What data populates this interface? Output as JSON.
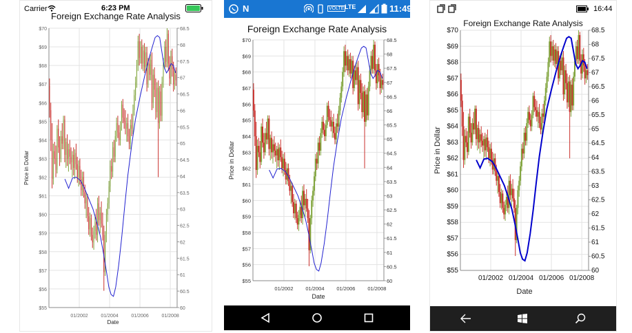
{
  "ios": {
    "status": {
      "carrier": "Carrier",
      "time": "6:23 PM"
    }
  },
  "android": {
    "status": {
      "time": "11:49",
      "volte": "VOLTE",
      "lte": "LTE"
    }
  },
  "windows": {
    "status": {
      "time": "16:44"
    }
  },
  "chart_data": [
    {
      "type": "candlestick",
      "platform": "iOS",
      "title": "Foreign Exchange Rate Analysis",
      "xlabel": "Date",
      "ylabel": "Price in Dollar",
      "x_ticks": [
        "01/2002",
        "01/2004",
        "01/2006",
        "01/2008"
      ],
      "y_left": {
        "range": [
          55,
          70
        ],
        "ticks": [
          "$55",
          "$56",
          "$57",
          "$58",
          "$59",
          "$60",
          "$61",
          "$62",
          "$63",
          "$64",
          "$65",
          "$66",
          "$67",
          "$68",
          "$69",
          "$70"
        ]
      },
      "y_right": {
        "range": [
          60,
          68.5
        ],
        "ticks": [
          "60",
          "60.5",
          "61",
          "61.5",
          "62",
          "62.5",
          "63",
          "63.5",
          "64",
          "64.5",
          "65",
          "65.5",
          "66",
          "66.5",
          "67",
          "67.5",
          "68",
          "68.5"
        ]
      },
      "colors": {
        "bullish": "#7fa33a",
        "bearish": "#c9302c",
        "line": "#2020d0"
      }
    },
    {
      "type": "candlestick",
      "platform": "Android",
      "title": "Foreign Exchange Rate Analysis",
      "xlabel": "Date",
      "ylabel": "Price in Dollar",
      "x_ticks": [
        "01/2002",
        "01/2004",
        "01/2006",
        "01/2008"
      ],
      "y_left": {
        "range": [
          55,
          70
        ],
        "ticks": [
          "$55",
          "$56",
          "$57",
          "$58",
          "$59",
          "$60",
          "$61",
          "$62",
          "$63",
          "$64",
          "$65",
          "$66",
          "$67",
          "$68",
          "$69",
          "$70"
        ]
      },
      "y_right": {
        "range": [
          60,
          68.5
        ],
        "ticks": [
          "60",
          "60.5",
          "61",
          "61.5",
          "62",
          "62.5",
          "63",
          "63.5",
          "64",
          "64.5",
          "65",
          "65.5",
          "66",
          "66.5",
          "67",
          "67.5",
          "68",
          "68.5"
        ]
      },
      "colors": {
        "bullish": "#7fa33a",
        "bearish": "#c9302c",
        "line": "#2020d0"
      }
    },
    {
      "type": "candlestick",
      "platform": "Windows",
      "title": "Foreign Exchange Rate Analysis",
      "xlabel": "Date",
      "ylabel": "Price in Dollar",
      "x_ticks": [
        "01/2002",
        "01/2004",
        "01/2006",
        "01/2008"
      ],
      "y_left": {
        "range": [
          55,
          70
        ],
        "ticks": [
          "$55",
          "$56",
          "$57",
          "$58",
          "$59",
          "$60",
          "$61",
          "$62",
          "$63",
          "$64",
          "$65",
          "$66",
          "$67",
          "$68",
          "$69",
          "$70"
        ]
      },
      "y_right": {
        "range": [
          60,
          68.5
        ],
        "ticks": [
          "60",
          "60.5",
          "61",
          "61.5",
          "62",
          "62.5",
          "63",
          "63.5",
          "64",
          "64.5",
          "65",
          "65.5",
          "66",
          "66.5",
          "67",
          "67.5",
          "68",
          "68.5"
        ]
      },
      "colors": {
        "bullish": "#7fa33a",
        "bearish": "#c9302c",
        "line": "#0000cc"
      }
    }
  ],
  "series": {
    "months": [
      "2000-01",
      "2000-02",
      "2000-03",
      "2000-04",
      "2000-05",
      "2000-06",
      "2000-07",
      "2000-08",
      "2000-09",
      "2000-10",
      "2000-11",
      "2000-12",
      "2001-01",
      "2001-02",
      "2001-03",
      "2001-04",
      "2001-05",
      "2001-06",
      "2001-07",
      "2001-08",
      "2001-09",
      "2001-10",
      "2001-11",
      "2001-12",
      "2002-01",
      "2002-02",
      "2002-03",
      "2002-04",
      "2002-05",
      "2002-06",
      "2002-07",
      "2002-08",
      "2002-09",
      "2002-10",
      "2002-11",
      "2002-12",
      "2003-01",
      "2003-02",
      "2003-03",
      "2003-04",
      "2003-05",
      "2003-06",
      "2003-07",
      "2003-08",
      "2003-09",
      "2003-10",
      "2003-11",
      "2003-12",
      "2004-01",
      "2004-02",
      "2004-03",
      "2004-04",
      "2004-05",
      "2004-06",
      "2004-07",
      "2004-08",
      "2004-09",
      "2004-10",
      "2004-11",
      "2004-12",
      "2005-01",
      "2005-02",
      "2005-03",
      "2005-04",
      "2005-05",
      "2005-06",
      "2005-07",
      "2005-08",
      "2005-09",
      "2005-10",
      "2005-11",
      "2005-12",
      "2006-01",
      "2006-02",
      "2006-03",
      "2006-04",
      "2006-05",
      "2006-06",
      "2006-07",
      "2006-08",
      "2006-09",
      "2006-10",
      "2006-11",
      "2006-12",
      "2007-01",
      "2007-02",
      "2007-03",
      "2007-04",
      "2007-05",
      "2007-06",
      "2007-07",
      "2007-08",
      "2007-09",
      "2007-10",
      "2007-11",
      "2007-12",
      "2008-01",
      "2008-02",
      "2008-03",
      "2008-04",
      "2008-05"
    ],
    "ohlc": [
      [
        66.9,
        67.3,
        65.2,
        65.6
      ],
      [
        65.6,
        66.0,
        63.4,
        64.0
      ],
      [
        64.0,
        64.9,
        61.4,
        61.9
      ],
      [
        61.9,
        63.8,
        61.6,
        63.4
      ],
      [
        63.4,
        63.9,
        62.7,
        63.0
      ],
      [
        63.0,
        63.7,
        62.0,
        62.4
      ],
      [
        62.4,
        64.8,
        62.2,
        64.6
      ],
      [
        64.6,
        65.1,
        63.3,
        63.6
      ],
      [
        63.6,
        64.2,
        62.6,
        63.0
      ],
      [
        63.0,
        64.5,
        62.8,
        64.2
      ],
      [
        64.2,
        64.9,
        63.5,
        63.8
      ],
      [
        63.8,
        65.3,
        63.5,
        65.1
      ],
      [
        65.1,
        65.3,
        62.8,
        63.2
      ],
      [
        63.2,
        64.1,
        62.5,
        63.9
      ],
      [
        63.9,
        64.3,
        62.6,
        63.0
      ],
      [
        63.0,
        63.8,
        62.3,
        63.5
      ],
      [
        63.5,
        64.0,
        62.7,
        63.1
      ],
      [
        63.1,
        63.6,
        62.4,
        62.8
      ],
      [
        62.8,
        63.4,
        62.0,
        63.2
      ],
      [
        63.2,
        63.6,
        62.1,
        62.5
      ],
      [
        62.5,
        63.5,
        61.9,
        63.3
      ],
      [
        63.3,
        63.8,
        62.4,
        62.7
      ],
      [
        62.7,
        63.1,
        61.7,
        62.0
      ],
      [
        62.0,
        62.9,
        61.5,
        62.6
      ],
      [
        62.6,
        63.0,
        61.6,
        61.9
      ],
      [
        61.9,
        62.4,
        61.0,
        61.3
      ],
      [
        61.3,
        62.3,
        61.0,
        62.0
      ],
      [
        62.0,
        62.3,
        60.9,
        61.2
      ],
      [
        61.2,
        61.6,
        60.3,
        60.6
      ],
      [
        60.6,
        61.2,
        59.8,
        60.9
      ],
      [
        60.9,
        61.1,
        59.6,
        59.9
      ],
      [
        59.9,
        60.4,
        58.9,
        59.2
      ],
      [
        59.2,
        60.1,
        58.8,
        59.8
      ],
      [
        59.8,
        60.0,
        58.6,
        58.9
      ],
      [
        58.9,
        59.3,
        58.2,
        58.5
      ],
      [
        58.5,
        59.4,
        58.1,
        59.1
      ],
      [
        59.1,
        60.0,
        58.7,
        59.6
      ],
      [
        59.6,
        60.3,
        58.6,
        58.9
      ],
      [
        58.9,
        60.9,
        58.5,
        60.6
      ],
      [
        60.6,
        61.0,
        59.4,
        59.7
      ],
      [
        59.7,
        60.4,
        59.0,
        60.1
      ],
      [
        60.1,
        60.7,
        59.3,
        59.5
      ],
      [
        59.5,
        60.1,
        58.6,
        58.9
      ],
      [
        58.9,
        59.4,
        55.9,
        56.9
      ],
      [
        56.9,
        59.1,
        56.7,
        58.9
      ],
      [
        58.9,
        60.3,
        58.5,
        60.0
      ],
      [
        60.0,
        60.9,
        59.6,
        60.6
      ],
      [
        60.6,
        61.8,
        60.3,
        61.5
      ],
      [
        61.5,
        62.9,
        61.2,
        62.6
      ],
      [
        62.6,
        63.0,
        61.9,
        62.3
      ],
      [
        62.3,
        63.9,
        62.0,
        63.6
      ],
      [
        63.6,
        64.0,
        62.8,
        63.1
      ],
      [
        63.1,
        64.5,
        62.8,
        64.2
      ],
      [
        64.2,
        65.2,
        63.9,
        64.9
      ],
      [
        64.9,
        65.3,
        64.1,
        64.4
      ],
      [
        64.4,
        64.8,
        63.7,
        64.0
      ],
      [
        64.0,
        65.0,
        63.7,
        64.7
      ],
      [
        64.7,
        66.1,
        64.5,
        65.9
      ],
      [
        65.9,
        66.2,
        64.9,
        65.2
      ],
      [
        65.2,
        65.7,
        64.6,
        65.0
      ],
      [
        65.0,
        65.6,
        64.3,
        64.6
      ],
      [
        64.6,
        65.2,
        63.9,
        64.9
      ],
      [
        64.9,
        65.4,
        63.9,
        64.2
      ],
      [
        64.2,
        64.6,
        63.5,
        63.8
      ],
      [
        63.8,
        65.1,
        63.5,
        64.8
      ],
      [
        64.8,
        65.4,
        64.2,
        64.6
      ],
      [
        64.6,
        65.9,
        64.3,
        65.6
      ],
      [
        65.6,
        66.7,
        65.3,
        66.4
      ],
      [
        66.4,
        67.4,
        66.1,
        67.1
      ],
      [
        67.1,
        68.3,
        66.8,
        68.0
      ],
      [
        68.0,
        69.6,
        67.7,
        69.3
      ],
      [
        69.3,
        69.7,
        68.0,
        68.4
      ],
      [
        68.4,
        69.3,
        68.1,
        69.0
      ],
      [
        69.0,
        69.4,
        67.8,
        68.1
      ],
      [
        68.1,
        69.1,
        67.7,
        68.8
      ],
      [
        68.8,
        69.2,
        67.6,
        67.9
      ],
      [
        67.9,
        69.0,
        67.6,
        68.7
      ],
      [
        68.7,
        69.0,
        66.6,
        67.0
      ],
      [
        67.0,
        68.4,
        66.8,
        68.1
      ],
      [
        68.1,
        68.5,
        67.2,
        67.5
      ],
      [
        67.5,
        68.6,
        67.2,
        68.3
      ],
      [
        68.3,
        68.7,
        65.6,
        66.0
      ],
      [
        66.0,
        67.8,
        65.7,
        67.5
      ],
      [
        67.5,
        67.9,
        66.3,
        66.7
      ],
      [
        66.7,
        67.3,
        65.1,
        65.5
      ],
      [
        65.5,
        67.1,
        65.2,
        66.8
      ],
      [
        66.8,
        67.2,
        62.0,
        64.9
      ],
      [
        64.9,
        66.9,
        64.6,
        66.6
      ],
      [
        66.6,
        67.0,
        65.0,
        65.3
      ],
      [
        65.3,
        67.4,
        65.0,
        67.1
      ],
      [
        67.1,
        68.4,
        66.8,
        68.1
      ],
      [
        68.1,
        69.3,
        67.8,
        69.0
      ],
      [
        69.0,
        69.4,
        67.9,
        68.2
      ],
      [
        68.2,
        70.0,
        67.9,
        69.7
      ],
      [
        69.7,
        69.9,
        67.7,
        68.1
      ],
      [
        68.1,
        68.5,
        66.9,
        67.3
      ],
      [
        67.3,
        68.8,
        67.0,
        68.5
      ],
      [
        68.5,
        68.9,
        67.4,
        67.8
      ],
      [
        67.8,
        68.2,
        66.6,
        67.0
      ],
      [
        67.0,
        67.8,
        66.7,
        67.5
      ],
      [
        67.5,
        67.9,
        66.9,
        67.2
      ]
    ],
    "moving_average": [
      [
        2001.05,
        61.9
      ],
      [
        2001.3,
        61.4
      ],
      [
        2001.55,
        61.95
      ],
      [
        2001.8,
        62.0
      ],
      [
        2002.1,
        61.8
      ],
      [
        2002.35,
        61.4
      ],
      [
        2002.6,
        60.9
      ],
      [
        2002.9,
        60.3
      ],
      [
        2003.15,
        59.6
      ],
      [
        2003.4,
        58.8
      ],
      [
        2003.6,
        57.9
      ],
      [
        2003.8,
        56.9
      ],
      [
        2003.95,
        56.1
      ],
      [
        2004.1,
        55.7
      ],
      [
        2004.25,
        55.6
      ],
      [
        2004.4,
        56.1
      ],
      [
        2004.6,
        57.3
      ],
      [
        2004.8,
        58.8
      ],
      [
        2005.0,
        60.5
      ],
      [
        2005.2,
        62.1
      ],
      [
        2005.45,
        63.7
      ],
      [
        2005.7,
        65.1
      ],
      [
        2006.0,
        66.3
      ],
      [
        2006.3,
        67.4
      ],
      [
        2006.6,
        68.4
      ],
      [
        2006.85,
        69.1
      ],
      [
        2007.0,
        69.5
      ],
      [
        2007.15,
        69.6
      ],
      [
        2007.3,
        69.5
      ],
      [
        2007.45,
        68.7
      ],
      [
        2007.6,
        67.9
      ],
      [
        2007.75,
        67.6
      ],
      [
        2007.9,
        67.8
      ],
      [
        2008.05,
        68.1
      ],
      [
        2008.2,
        68.0
      ],
      [
        2008.35,
        67.6
      ]
    ]
  }
}
